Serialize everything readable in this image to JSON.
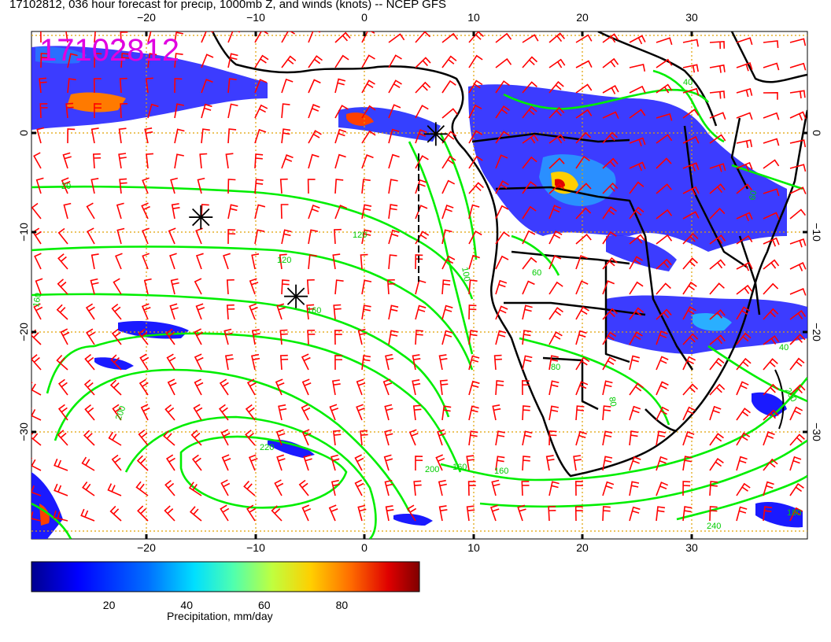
{
  "title": "17102812, 036 hour forecast for precip, 1000mb Z, and winds (knots) -- NCEP GFS",
  "stamp": "17102812",
  "map": {
    "lon_ticks": [
      "−20",
      "−10",
      "0",
      "10",
      "20",
      "30"
    ],
    "lat_ticks": [
      "0",
      "−10",
      "−20",
      "−30"
    ],
    "lon_range": [
      -30,
      41
    ],
    "lat_range": [
      -40,
      10
    ],
    "lat_dashed_grid": [
      0,
      -10,
      -20,
      -30
    ],
    "lon_dashed_grid": [
      -20,
      -10,
      0,
      10,
      20,
      30
    ],
    "contour_labels": [
      "20",
      "120",
      "120",
      "160",
      "160",
      "160",
      "200",
      "200",
      "200",
      "220",
      "240",
      "100",
      "60",
      "80",
      "80",
      "40",
      "60",
      "40",
      "160",
      "180"
    ],
    "lows": [
      {
        "lon": -14.5,
        "lat": -8.3
      },
      {
        "lon": -5.8,
        "lat": -16.1
      },
      {
        "lon": 7.0,
        "lat": -0.1
      }
    ],
    "colors": {
      "wind_barbs": "#ff0000",
      "height_contours": "#00ee00",
      "coastlines": "#000000",
      "grid": "#e0a000",
      "stamp": "#e000e0"
    }
  },
  "colorbar": {
    "ticks": [
      "20",
      "40",
      "60",
      "80"
    ],
    "tick_values": [
      20,
      40,
      60,
      80
    ],
    "range": [
      0,
      100
    ],
    "label": "Precipitation, mm/day",
    "colors": [
      "#00008f",
      "#0000ff",
      "#006fff",
      "#00dfff",
      "#4fffaf",
      "#bfff3f",
      "#ffcf00",
      "#ff6f00",
      "#df0000",
      "#7f0000"
    ]
  }
}
